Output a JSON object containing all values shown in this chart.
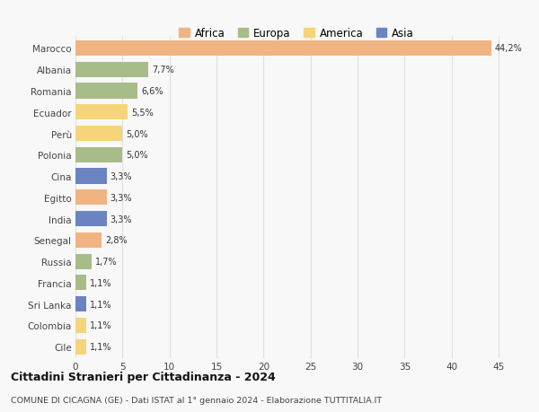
{
  "countries": [
    "Marocco",
    "Albania",
    "Romania",
    "Ecuador",
    "Perù",
    "Polonia",
    "Cina",
    "Egitto",
    "India",
    "Senegal",
    "Russia",
    "Francia",
    "Sri Lanka",
    "Colombia",
    "Cile"
  ],
  "values": [
    44.2,
    7.7,
    6.6,
    5.5,
    5.0,
    5.0,
    3.3,
    3.3,
    3.3,
    2.8,
    1.7,
    1.1,
    1.1,
    1.1,
    1.1
  ],
  "labels": [
    "44,2%",
    "7,7%",
    "6,6%",
    "5,5%",
    "5,0%",
    "5,0%",
    "3,3%",
    "3,3%",
    "3,3%",
    "2,8%",
    "1,7%",
    "1,1%",
    "1,1%",
    "1,1%",
    "1,1%"
  ],
  "colors": [
    "#f0b482",
    "#a8bc8a",
    "#a8bc8a",
    "#f5d47a",
    "#f5d47a",
    "#a8bc8a",
    "#6b83c0",
    "#f0b482",
    "#6b83c0",
    "#f0b482",
    "#a8bc8a",
    "#a8bc8a",
    "#6b83c0",
    "#f5d47a",
    "#f5d47a"
  ],
  "legend": [
    {
      "label": "Africa",
      "color": "#f0b482"
    },
    {
      "label": "Europa",
      "color": "#a8bc8a"
    },
    {
      "label": "America",
      "color": "#f5d47a"
    },
    {
      "label": "Asia",
      "color": "#6b83c0"
    }
  ],
  "title": "Cittadini Stranieri per Cittadinanza - 2024",
  "subtitle": "COMUNE DI CICAGNA (GE) - Dati ISTAT al 1° gennaio 2024 - Elaborazione TUTTITALIA.IT",
  "xlim": [
    0,
    47
  ],
  "xticks": [
    0,
    5,
    10,
    15,
    20,
    25,
    30,
    35,
    40,
    45
  ],
  "background_color": "#f8f8f8",
  "grid_color": "#e0e0e0"
}
